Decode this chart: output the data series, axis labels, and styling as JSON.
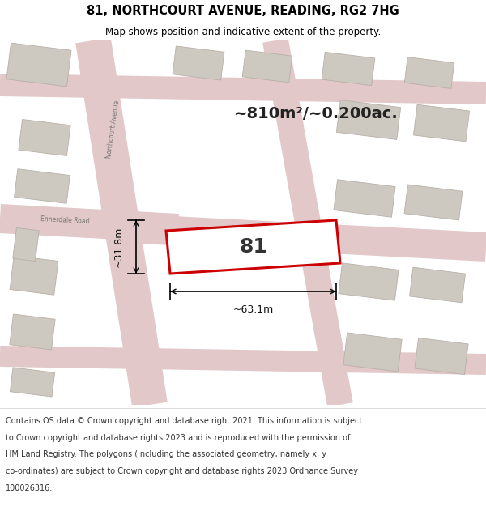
{
  "title": "81, NORTHCOURT AVENUE, READING, RG2 7HG",
  "subtitle": "Map shows position and indicative extent of the property.",
  "area_text": "~810m²/~0.200ac.",
  "label_81": "81",
  "dim_width": "~63.1m",
  "dim_height": "~31.8m",
  "footer_lines": [
    "Contains OS data © Crown copyright and database right 2021. This information is subject",
    "to Crown copyright and database rights 2023 and is reproduced with the permission of",
    "HM Land Registry. The polygons (including the associated geometry, namely x, y",
    "co-ordinates) are subject to Crown copyright and database rights 2023 Ordnance Survey",
    "100026316."
  ],
  "map_bg": "#edeae4",
  "road_color": "#e2c8c8",
  "building_fill": "#cdc8c0",
  "building_edge": "#b8b0a8",
  "prop_fill": "#ffffff",
  "prop_edge": "#cc0000",
  "title_bg": "#ffffff",
  "footer_bg": "#ffffff",
  "text_color": "#000000",
  "dim_color": "#111111",
  "road_label_color": "#777777",
  "northcourt_avenue_label": "Northcourt Avenue",
  "ennerdale_road_label": "Ennerdale Road"
}
